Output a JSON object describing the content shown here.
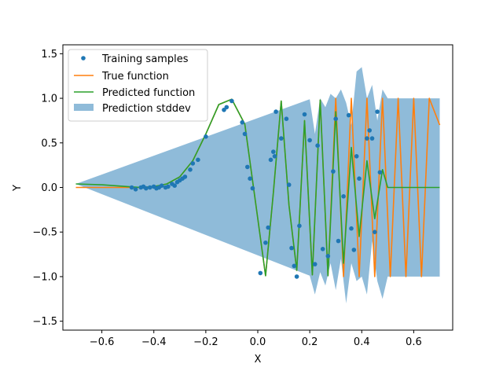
{
  "chart_data": {
    "type": "line",
    "title": "",
    "xlabel": "X",
    "ylabel": "Y",
    "xlim": [
      -0.75,
      0.75
    ],
    "ylim": [
      -1.6,
      1.6
    ],
    "x_ticks": [
      -0.6,
      -0.4,
      -0.2,
      0.0,
      0.2,
      0.4,
      0.6
    ],
    "y_ticks": [
      -1.5,
      -1.0,
      -0.5,
      0.0,
      0.5,
      1.0,
      1.5
    ],
    "x_tick_labels": [
      "−0.6",
      "−0.4",
      "−0.2",
      "0.0",
      "0.2",
      "0.4",
      "0.6"
    ],
    "y_tick_labels": [
      "−1.5",
      "−1.0",
      "−0.5",
      "0.0",
      "0.5",
      "1.0",
      "1.5"
    ],
    "grid": false,
    "legend_position": "top-left",
    "colors": {
      "samples": "#1f77b4",
      "true": "#ff7f0e",
      "predicted": "#2ca02c",
      "stddev": "#1f77b4"
    },
    "legend": [
      {
        "label": "Training samples",
        "kind": "marker"
      },
      {
        "label": "True function",
        "kind": "line-true"
      },
      {
        "label": "Predicted function",
        "kind": "line-pred"
      },
      {
        "label": "Prediction stddev",
        "kind": "patch"
      }
    ],
    "series": [
      {
        "name": "True function",
        "type": "line",
        "x": [
          -0.7,
          -0.65,
          -0.6,
          -0.55,
          -0.5,
          -0.45,
          -0.4,
          -0.35,
          -0.3,
          -0.25,
          -0.2,
          -0.15,
          -0.1,
          -0.05,
          0.0,
          0.03,
          0.06,
          0.09,
          0.12,
          0.15,
          0.18,
          0.21,
          0.24,
          0.27,
          0.3,
          0.33,
          0.36,
          0.39,
          0.42,
          0.45,
          0.48,
          0.51,
          0.54,
          0.57,
          0.6,
          0.63,
          0.66,
          0.7
        ],
        "y": [
          0.0,
          0.0,
          0.0,
          0.0,
          0.0,
          0.0,
          0.01,
          0.04,
          0.12,
          0.3,
          0.6,
          0.93,
          0.99,
          0.71,
          -0.35,
          -0.99,
          -0.06,
          0.97,
          -0.2,
          -0.93,
          0.75,
          -0.98,
          0.98,
          -0.99,
          1.0,
          -1.0,
          1.0,
          -1.0,
          1.0,
          -1.0,
          1.0,
          -1.0,
          1.0,
          -1.0,
          1.0,
          -1.0,
          1.0,
          0.7
        ]
      },
      {
        "name": "Predicted function",
        "type": "line",
        "x": [
          -0.7,
          -0.6,
          -0.5,
          -0.45,
          -0.4,
          -0.35,
          -0.3,
          -0.25,
          -0.2,
          -0.15,
          -0.1,
          -0.05,
          0.0,
          0.03,
          0.06,
          0.09,
          0.12,
          0.15,
          0.18,
          0.21,
          0.24,
          0.27,
          0.3,
          0.33,
          0.36,
          0.39,
          0.42,
          0.45,
          0.48,
          0.5,
          0.55,
          0.6,
          0.65,
          0.7
        ],
        "y": [
          0.04,
          0.03,
          0.01,
          0.0,
          0.01,
          0.04,
          0.12,
          0.3,
          0.6,
          0.93,
          0.99,
          0.71,
          -0.35,
          -0.99,
          -0.06,
          0.97,
          -0.2,
          -0.93,
          0.75,
          -0.98,
          0.98,
          -0.99,
          0.85,
          -0.85,
          0.45,
          -0.55,
          0.3,
          -0.35,
          0.2,
          0.0,
          0.0,
          0.0,
          0.0,
          0.0
        ]
      },
      {
        "name": "Training samples",
        "type": "scatter",
        "x": [
          -0.485,
          -0.47,
          -0.45,
          -0.44,
          -0.43,
          -0.415,
          -0.4,
          -0.39,
          -0.38,
          -0.37,
          -0.355,
          -0.345,
          -0.33,
          -0.32,
          -0.31,
          -0.3,
          -0.29,
          -0.28,
          -0.26,
          -0.25,
          -0.23,
          -0.2,
          -0.13,
          -0.12,
          -0.1,
          -0.06,
          -0.05,
          -0.04,
          -0.03,
          -0.02,
          0.01,
          0.03,
          0.04,
          0.05,
          0.06,
          0.065,
          0.07,
          0.09,
          0.11,
          0.12,
          0.13,
          0.14,
          0.15,
          0.16,
          0.18,
          0.2,
          0.22,
          0.23,
          0.25,
          0.27,
          0.29,
          0.3,
          0.31,
          0.33,
          0.35,
          0.36,
          0.37,
          0.38,
          0.39,
          0.42,
          0.43,
          0.44,
          0.45,
          0.46,
          0.47
        ],
        "y": [
          0.0,
          -0.02,
          0.0,
          0.01,
          -0.01,
          0.0,
          0.01,
          -0.01,
          0.0,
          0.02,
          0.0,
          0.01,
          0.04,
          0.02,
          0.06,
          0.08,
          0.1,
          0.12,
          0.2,
          0.27,
          0.31,
          0.57,
          0.87,
          0.9,
          0.97,
          0.73,
          0.6,
          0.23,
          0.1,
          -0.01,
          -0.96,
          -0.62,
          -0.45,
          0.31,
          0.4,
          0.35,
          0.85,
          0.55,
          0.77,
          0.03,
          -0.68,
          -0.88,
          -1.0,
          -0.43,
          0.82,
          0.53,
          -0.86,
          0.47,
          -0.69,
          -0.77,
          0.18,
          0.77,
          -0.6,
          -0.1,
          0.81,
          -0.46,
          -0.7,
          0.35,
          0.1,
          0.55,
          0.64,
          0.55,
          -0.5,
          0.85,
          0.17
        ]
      }
    ],
    "stddev_band": {
      "name": "Prediction stddev",
      "x": [
        -0.7,
        0.2,
        0.22,
        0.24,
        0.26,
        0.28,
        0.3,
        0.32,
        0.34,
        0.36,
        0.38,
        0.4,
        0.42,
        0.44,
        0.46,
        0.48,
        0.5,
        0.6,
        0.7
      ],
      "upper": [
        0.04,
        0.99,
        0.6,
        1.0,
        0.9,
        1.05,
        1.0,
        1.1,
        0.95,
        0.7,
        1.3,
        1.35,
        1.0,
        1.15,
        0.75,
        1.1,
        1.0,
        1.0,
        1.0
      ],
      "lower": [
        0.04,
        -0.99,
        -1.2,
        -0.95,
        -1.1,
        -0.85,
        -1.15,
        -0.8,
        -1.3,
        -0.85,
        -1.05,
        -1.0,
        -1.2,
        -0.6,
        -1.05,
        -1.25,
        -1.0,
        -1.0,
        -1.0
      ]
    }
  }
}
